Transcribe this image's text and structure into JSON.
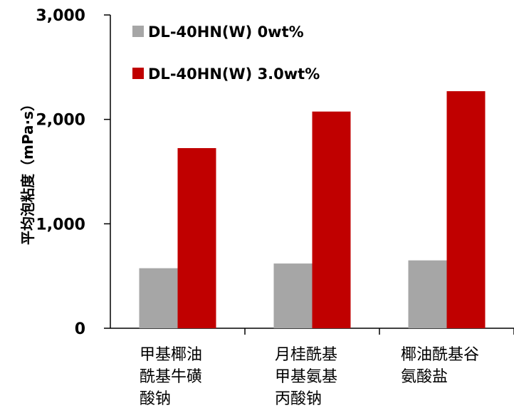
{
  "chart_data": {
    "type": "bar",
    "ylabel": "平均泡粘度（mPa·s）",
    "ylim": [
      0,
      3000
    ],
    "yticks": [
      0,
      1000,
      2000,
      3000
    ],
    "ytick_labels": [
      "0",
      "1,000",
      "2,000",
      "3,000"
    ],
    "categories": [
      [
        "甲基椰油",
        "酰基牛磺",
        "酸钠"
      ],
      [
        "月桂酰基",
        "甲基氨基",
        "丙酸钠"
      ],
      [
        "椰油酰基谷",
        "氨酸盐"
      ]
    ],
    "series": [
      {
        "name": "DL-40HN(W)  0wt%",
        "color": "#a6a6a6",
        "values": [
          575,
          620,
          650
        ]
      },
      {
        "name": "DL-40HN(W)  3.0wt%",
        "color": "#c00000",
        "values": [
          1725,
          2075,
          2270
        ]
      }
    ],
    "legend_position": "top-left",
    "grid": false
  }
}
